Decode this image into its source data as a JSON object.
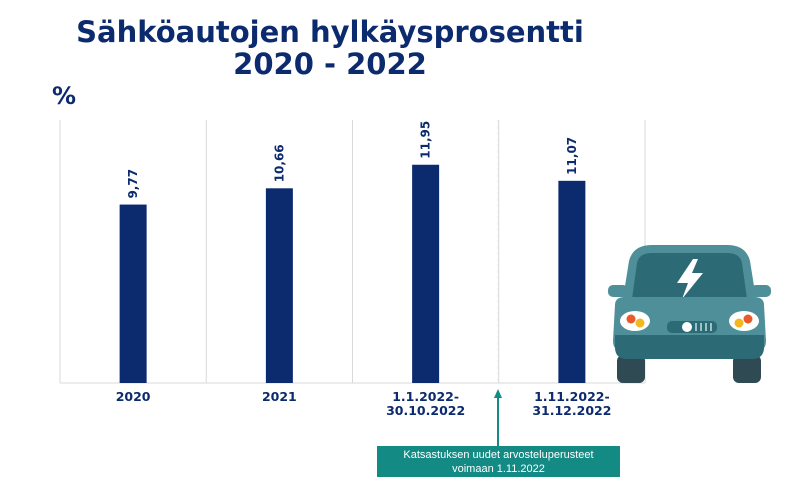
{
  "chart_data": {
    "type": "bar",
    "title_line1": "Sähköautojen hylkäysprosentti",
    "title_line2": "2020 - 2022",
    "ylabel": "%",
    "categories": [
      [
        "2020"
      ],
      [
        "2021"
      ],
      [
        "1.1.2022-",
        "30.10.2022"
      ],
      [
        "1.11.2022-",
        "31.12.2022"
      ]
    ],
    "values": [
      9.77,
      10.66,
      11.95,
      11.07
    ],
    "value_labels": [
      "9,77",
      "10,66",
      "11,95",
      "11,07"
    ],
    "ylim": [
      0,
      14.4
    ],
    "grid": "vertical separators",
    "bar_color": "#0c2a6e",
    "annotation": {
      "line1": "Katsastuksen uudet arvosteluperusteet",
      "line2": "voimaan 1.11.2022",
      "color": "#148a84"
    }
  },
  "illustration": {
    "icon": "electric-car-icon",
    "body_color": "#4e8f9a",
    "lightning_color": "#ffffff"
  }
}
